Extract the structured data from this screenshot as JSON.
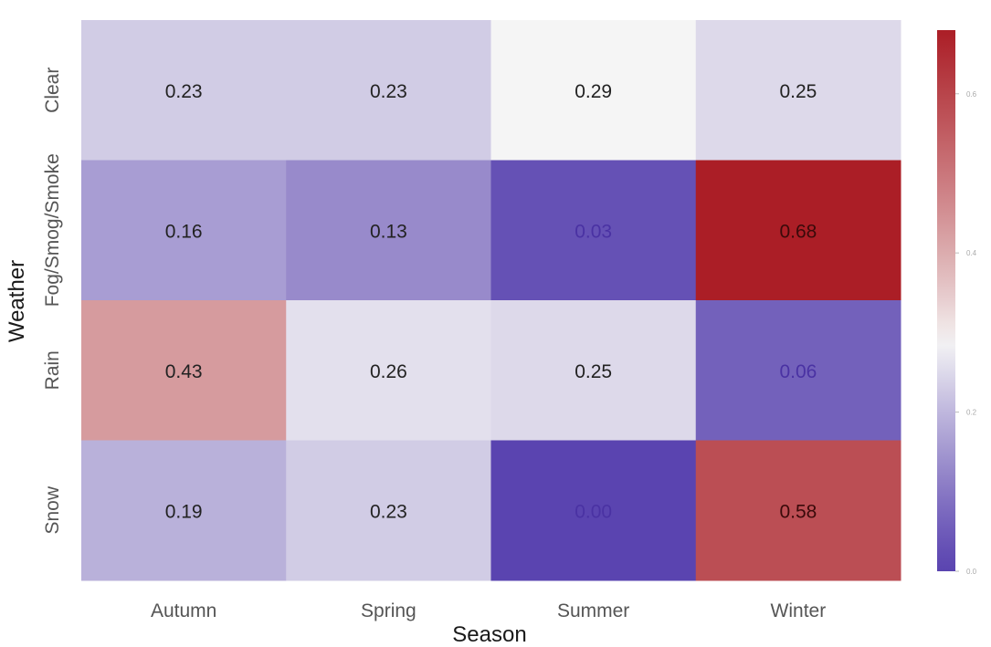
{
  "chart_data": {
    "type": "heatmap",
    "xlabel": "Season",
    "ylabel": "Weather",
    "x": [
      "Autumn",
      "Spring",
      "Summer",
      "Winter"
    ],
    "y": [
      "Clear",
      "Fog/Smog/Smoke",
      "Rain",
      "Snow"
    ],
    "values": [
      [
        0.23,
        0.23,
        0.29,
        0.25
      ],
      [
        0.16,
        0.13,
        0.03,
        0.68
      ],
      [
        0.43,
        0.26,
        0.25,
        0.06
      ],
      [
        0.19,
        0.23,
        0.0,
        0.58
      ]
    ],
    "value_labels": [
      [
        "0.23",
        "0.23",
        "0.29",
        "0.25"
      ],
      [
        "0.16",
        "0.13",
        "0.03",
        "0.68"
      ],
      [
        "0.43",
        "0.26",
        "0.25",
        "0.06"
      ],
      [
        "0.19",
        "0.23",
        "0.00",
        "0.58"
      ]
    ],
    "colorbar": {
      "range": [
        0.0,
        0.68
      ],
      "ticks": [
        0.0,
        0.2,
        0.4,
        0.6
      ],
      "tick_labels": [
        "0.0",
        "0.2",
        "0.4",
        "0.6"
      ],
      "colormap": "purple-white-red",
      "colors": {
        "low": "#5a44b0",
        "mid": "#f5f5f5",
        "high": "#ab1e26"
      }
    },
    "legend": "colorbar-right",
    "grid": false
  }
}
